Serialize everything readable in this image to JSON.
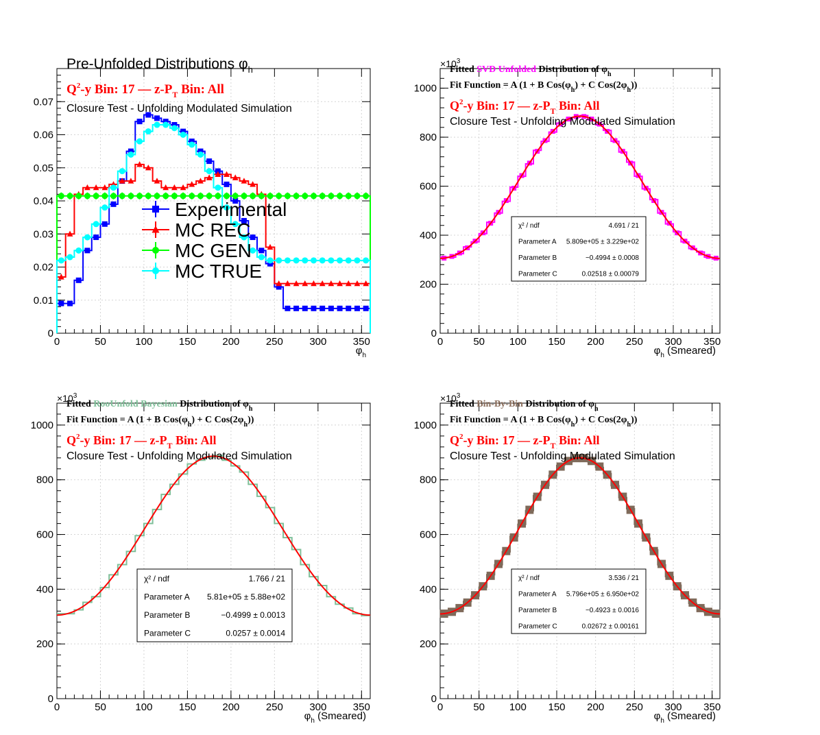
{
  "chart_data": [
    {
      "id": "preunfolded",
      "type": "line",
      "step": true,
      "title": "Pre-Unfolded Distributions φ",
      "title_sub": "h",
      "bin_label": {
        "q2y": "Q",
        "q2y_sup": "2",
        "q2y_rest": "-y Bin: 17",
        "sep": "—",
        "zpt": "z-P",
        "zpt_sub": "T",
        "zpt_rest": " Bin: All"
      },
      "subtitle": "Closure Test - Unfolding Modulated Simulation",
      "xlabel": "φ",
      "xlabel_sub": "h",
      "xlabel_rest": "",
      "xlim": [
        0,
        360
      ],
      "ylim": [
        0,
        0.08
      ],
      "xticks": [
        0,
        50,
        100,
        150,
        200,
        250,
        300,
        350
      ],
      "yticks": [
        0,
        0.01,
        0.02,
        0.03,
        0.04,
        0.05,
        0.06,
        0.07
      ],
      "ytick_labels": [
        "0",
        "0.01",
        "0.02",
        "0.03",
        "0.04",
        "0.05",
        "0.06",
        "0.07"
      ],
      "x": [
        5,
        15,
        25,
        35,
        45,
        55,
        65,
        75,
        85,
        95,
        105,
        115,
        125,
        135,
        145,
        155,
        165,
        175,
        185,
        195,
        205,
        215,
        225,
        235,
        245,
        255,
        265,
        275,
        285,
        295,
        305,
        315,
        325,
        335,
        345,
        355
      ],
      "series": [
        {
          "name": "Experimental",
          "color": "#0000ff",
          "marker": "square",
          "values": [
            0.009,
            0.009,
            0.016,
            0.025,
            0.029,
            0.033,
            0.039,
            0.046,
            0.055,
            0.064,
            0.066,
            0.065,
            0.064,
            0.063,
            0.061,
            0.058,
            0.055,
            0.052,
            0.049,
            0.045,
            0.04,
            0.034,
            0.029,
            0.025,
            0.021,
            0.014,
            0.0075,
            0.0075,
            0.0075,
            0.0075,
            0.0075,
            0.0075,
            0.0075,
            0.0075,
            0.0075,
            0.0075
          ]
        },
        {
          "name": "MC REC",
          "color": "#ff0000",
          "marker": "triangle",
          "values": [
            0.017,
            0.03,
            0.042,
            0.044,
            0.044,
            0.044,
            0.045,
            0.046,
            0.046,
            0.051,
            0.05,
            0.046,
            0.044,
            0.044,
            0.044,
            0.045,
            0.046,
            0.047,
            0.048,
            0.048,
            0.047,
            0.046,
            0.045,
            0.042,
            0.026,
            0.015,
            0.015,
            0.015,
            0.015,
            0.015,
            0.015,
            0.015,
            0.015,
            0.015,
            0.015,
            0.015
          ]
        },
        {
          "name": "MC GEN",
          "color": "#00ff00",
          "marker": "circle",
          "values": [
            0.0415,
            0.0415,
            0.0415,
            0.0415,
            0.0415,
            0.0415,
            0.0415,
            0.0415,
            0.0415,
            0.0415,
            0.0415,
            0.0415,
            0.0415,
            0.0415,
            0.0415,
            0.0415,
            0.0415,
            0.0415,
            0.0415,
            0.0415,
            0.0415,
            0.0415,
            0.0415,
            0.0415,
            0.0415,
            0.0415,
            0.0415,
            0.0415,
            0.0415,
            0.0415,
            0.0415,
            0.0415,
            0.0415,
            0.0415,
            0.0415,
            0.0415
          ]
        },
        {
          "name": "MC TRUE",
          "color": "#00ffff",
          "marker": "circle",
          "values": [
            0.022,
            0.023,
            0.025,
            0.029,
            0.033,
            0.038,
            0.044,
            0.049,
            0.054,
            0.058,
            0.061,
            0.063,
            0.063,
            0.062,
            0.06,
            0.057,
            0.054,
            0.049,
            0.044,
            0.038,
            0.033,
            0.029,
            0.025,
            0.023,
            0.022,
            0.022,
            0.022,
            0.022,
            0.022,
            0.022,
            0.022,
            0.022,
            0.022,
            0.022,
            0.022,
            0.022
          ]
        }
      ],
      "legend": [
        "Experimental",
        "MC REC",
        "MC GEN",
        "MC TRUE"
      ],
      "legend_position": "center"
    },
    {
      "id": "svd",
      "type": "line",
      "step": true,
      "title_prefix": "Fitted ",
      "title_method": "SVD Unfolded",
      "title_method_color": "#ff00ff",
      "title_suffix": " Distribution of φ",
      "title_sub": "h",
      "fit_function": "Fit Function = A (1 + B Cos(φ",
      "fit_function_mid": ") + C Cos(2φ",
      "fit_function_end": "))",
      "fit_sub": "h",
      "bin_label": {
        "q2y": "Q",
        "q2y_sup": "2",
        "q2y_rest": "-y Bin: 17",
        "sep": "—",
        "zpt": "z-P",
        "zpt_sub": "T",
        "zpt_rest": " Bin: All"
      },
      "subtitle": "Closure Test - Unfolding Modulated Simulation",
      "xlabel": "φ",
      "xlabel_sub": "h",
      "xlabel_rest": " (Smeared)",
      "exponent": "×10",
      "exponent_sup": "3",
      "xlim": [
        0,
        360
      ],
      "ylim": [
        0,
        1080
      ],
      "xticks": [
        0,
        50,
        100,
        150,
        200,
        250,
        300,
        350
      ],
      "yticks": [
        0,
        200,
        400,
        600,
        800,
        1000
      ],
      "ytick_labels": [
        "0",
        "200",
        "400",
        "600",
        "800",
        "1000"
      ],
      "hist_color": "#ff00ff",
      "fit_color": "#ff0000",
      "marker": "square",
      "fit": {
        "A": 581,
        "B": -0.4994,
        "C": 0.02518
      },
      "stats": [
        {
          "label": "χ² / ndf",
          "value": "4.691 / 21"
        },
        {
          "label": "Parameter A",
          "value": "5.809e+05 ± 3.229e+02"
        },
        {
          "label": "Parameter B",
          "value": "−0.4994 ± 0.0008"
        },
        {
          "label": "Parameter C",
          "value": "0.02518 ± 0.00079"
        }
      ]
    },
    {
      "id": "bayesian",
      "type": "line",
      "step": true,
      "title_prefix": "Fitted ",
      "title_method": "RooUnfold Bayesian",
      "title_method_color": "#7fbf99",
      "title_suffix": " Distribution of φ",
      "title_sub": "h",
      "fit_function": "Fit Function = A (1 + B Cos(φ",
      "fit_function_mid": ") + C Cos(2φ",
      "fit_function_end": "))",
      "fit_sub": "h",
      "bin_label": {
        "q2y": "Q",
        "q2y_sup": "2",
        "q2y_rest": "-y Bin: 17",
        "sep": "—",
        "zpt": "z-P",
        "zpt_sub": "T",
        "zpt_rest": " Bin: All"
      },
      "subtitle": "Closure Test - Unfolding Modulated Simulation",
      "xlabel": "φ",
      "xlabel_sub": "h",
      "xlabel_rest": " (Smeared)",
      "exponent": "×10",
      "exponent_sup": "3",
      "xlim": [
        0,
        360
      ],
      "ylim": [
        0,
        1080
      ],
      "xticks": [
        0,
        50,
        100,
        150,
        200,
        250,
        300,
        350
      ],
      "yticks": [
        0,
        200,
        400,
        600,
        800,
        1000
      ],
      "ytick_labels": [
        "0",
        "200",
        "400",
        "600",
        "800",
        "1000"
      ],
      "hist_color": "#7fbf99",
      "fit_color": "#ff0000",
      "marker": "none",
      "fit": {
        "A": 581,
        "B": -0.4999,
        "C": 0.0257
      },
      "stats": [
        {
          "label": "χ² / ndf",
          "value": "1.766 / 21"
        },
        {
          "label": "Parameter A",
          "value": "5.81e+05 ± 5.88e+02"
        },
        {
          "label": "Parameter B",
          "value": "−0.4999 ± 0.0013"
        },
        {
          "label": "Parameter C",
          "value": "0.0257 ± 0.0014"
        }
      ]
    },
    {
      "id": "binbybin",
      "type": "line",
      "step": true,
      "title_prefix": "Fitted ",
      "title_method": "Bin-By-Bin",
      "title_method_color": "#8b6e5c",
      "title_suffix": " Distribution of φ",
      "title_sub": "h",
      "fit_function": "Fit Function = A (1 + B Cos(φ",
      "fit_function_mid": ") + C Cos(2φ",
      "fit_function_end": "))",
      "fit_sub": "h",
      "bin_label": {
        "q2y": "Q",
        "q2y_sup": "2",
        "q2y_rest": "-y Bin: 17",
        "sep": "—",
        "zpt": "z-P",
        "zpt_sub": "T",
        "zpt_rest": " Bin: All"
      },
      "subtitle": "Closure Test - Unfolding Modulated Simulation",
      "xlabel": "φ",
      "xlabel_sub": "h",
      "xlabel_rest": " (Smeared)",
      "exponent": "×10",
      "exponent_sup": "3",
      "xlim": [
        0,
        360
      ],
      "ylim": [
        0,
        1080
      ],
      "xticks": [
        0,
        50,
        100,
        150,
        200,
        250,
        300,
        350
      ],
      "yticks": [
        0,
        200,
        400,
        600,
        800,
        1000
      ],
      "ytick_labels": [
        "0",
        "200",
        "400",
        "600",
        "800",
        "1000"
      ],
      "hist_color": "#7f6a5a",
      "fit_color": "#ff0000",
      "marker": "square",
      "fit": {
        "A": 579.6,
        "B": -0.4923,
        "C": 0.02672
      },
      "stats": [
        {
          "label": "χ² / ndf",
          "value": "3.536 / 21"
        },
        {
          "label": "Parameter A",
          "value": "5.796e+05 ± 6.950e+02"
        },
        {
          "label": "Parameter B",
          "value": "−0.4923 ± 0.0016"
        },
        {
          "label": "Parameter C",
          "value": "0.02672 ± 0.00161"
        }
      ]
    }
  ]
}
